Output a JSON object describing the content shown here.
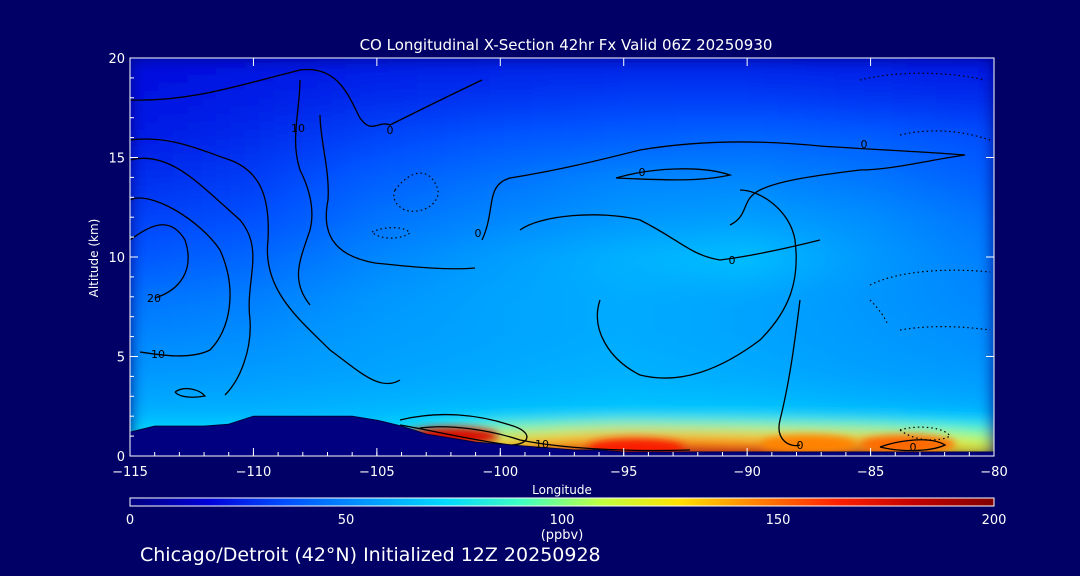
{
  "chart_data": {
    "type": "heatmap",
    "title": "CO Longitudinal X-Section 42hr  Fx Valid 06Z 20250930",
    "subtitle": "Chicago/Detroit (42°N) Initialized 12Z 20250928",
    "xlabel": "Longitude",
    "ylabel": "Altitude (km)",
    "xlim": [
      -115,
      -80
    ],
    "ylim": [
      0,
      20
    ],
    "x_ticks": [
      -115,
      -110,
      -105,
      -100,
      -95,
      -90,
      -85,
      -80
    ],
    "x_tick_labels": [
      "−115",
      "−110",
      "−105",
      "−100",
      "−95",
      "−90",
      "−85",
      "−80"
    ],
    "y_ticks": [
      0,
      5,
      10,
      15,
      20
    ],
    "y_tick_labels": [
      "0",
      "5",
      "10",
      "15",
      "20"
    ],
    "colorbar": {
      "label": "(ppbv)",
      "range": [
        0,
        200
      ],
      "ticks": [
        0,
        50,
        100,
        150,
        200
      ],
      "tick_labels": [
        "0",
        "50",
        "100",
        "150",
        "200"
      ],
      "colors": [
        "#000080",
        "#0000d8",
        "#0050ff",
        "#0098ff",
        "#00d8ff",
        "#40ffc0",
        "#c0ff40",
        "#ffe000",
        "#ff8000",
        "#ff2000",
        "#c00000",
        "#800000"
      ]
    },
    "background_field": {
      "x": [
        -115,
        -110,
        -105,
        -100,
        -95,
        -90,
        -85,
        -80
      ],
      "y": [
        0.5,
        2,
        4,
        6,
        8,
        10,
        12,
        14,
        16,
        18,
        20
      ],
      "z": [
        [
          85,
          85,
          80,
          140,
          170,
          160,
          150,
          120
        ],
        [
          62,
          62,
          64,
          66,
          68,
          68,
          65,
          62
        ],
        [
          55,
          56,
          58,
          60,
          62,
          60,
          57,
          55
        ],
        [
          50,
          52,
          56,
          58,
          60,
          58,
          55,
          52
        ],
        [
          45,
          48,
          54,
          58,
          60,
          58,
          54,
          50
        ],
        [
          38,
          42,
          50,
          56,
          62,
          66,
          55,
          48
        ],
        [
          33,
          36,
          45,
          50,
          54,
          56,
          52,
          45
        ],
        [
          28,
          32,
          40,
          45,
          50,
          50,
          46,
          40
        ],
        [
          24,
          28,
          34,
          38,
          40,
          42,
          40,
          36
        ],
        [
          22,
          25,
          28,
          30,
          32,
          32,
          30,
          28
        ],
        [
          20,
          22,
          24,
          25,
          25,
          25,
          24,
          22
        ]
      ]
    },
    "surface_plumes": [
      {
        "x": -102.0,
        "y": 1.0,
        "value": 175
      },
      {
        "x": -94.5,
        "y": 0.4,
        "value": 165
      },
      {
        "x": -87.5,
        "y": 0.6,
        "value": 145
      },
      {
        "x": -83.5,
        "y": 0.6,
        "value": 150
      }
    ],
    "contour_labels": [
      "0",
      "0",
      "0",
      "0",
      "0",
      "0",
      "0",
      "10",
      "10",
      "20",
      "10"
    ],
    "terrain": {
      "x": [
        -115,
        -114,
        -113,
        -112,
        -111,
        -110,
        -109,
        -108,
        -107,
        -106,
        -105,
        -104,
        -103,
        -102,
        -101,
        -100,
        -99,
        -98,
        -97,
        -96,
        -95,
        -94,
        -93,
        -92,
        -91,
        -90,
        -89,
        -88,
        -87,
        -86,
        -85,
        -84,
        -83,
        -82,
        -81,
        -80
      ],
      "y": [
        1.2,
        1.5,
        1.5,
        1.5,
        1.6,
        2.0,
        2.0,
        2.0,
        2.0,
        2.0,
        1.8,
        1.5,
        1.1,
        0.9,
        0.7,
        0.6,
        0.5,
        0.4,
        0.3,
        0.3,
        0.2,
        0.2,
        0.2,
        0.2,
        0.2,
        0.2,
        0.2,
        0.2,
        0.2,
        0.2,
        0.2,
        0.2,
        0.2,
        0.2,
        0.2,
        0.2
      ]
    }
  }
}
